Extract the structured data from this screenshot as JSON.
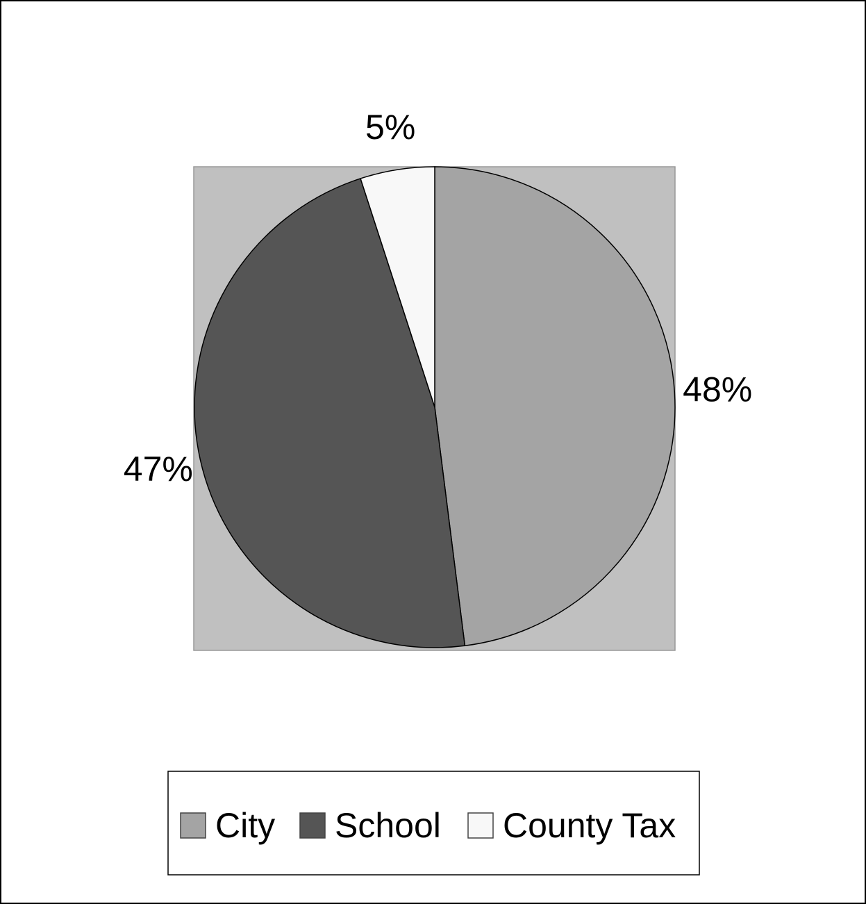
{
  "chart_data": {
    "type": "pie",
    "title": "",
    "start_angle_deg": 0,
    "direction": "clockwise",
    "plot_background": "#c0c0c0",
    "legend_position": "bottom",
    "slices": [
      {
        "name": "City",
        "value": 48,
        "label": "48%",
        "color": "#a4a4a4"
      },
      {
        "name": "School",
        "value": 47,
        "label": "47%",
        "color": "#555555"
      },
      {
        "name": "County Tax",
        "value": 5,
        "label": "5%",
        "color": "#f8f8f8"
      }
    ]
  }
}
